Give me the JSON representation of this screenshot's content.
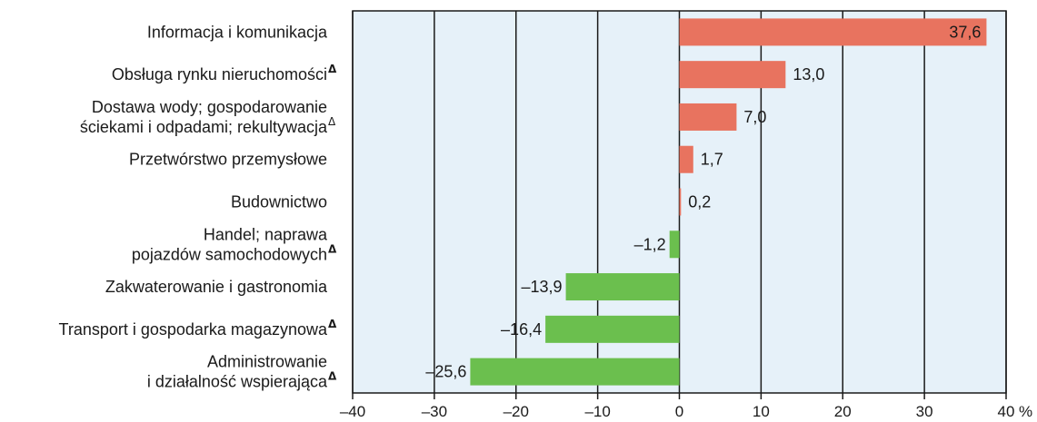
{
  "chart_data": {
    "type": "bar",
    "orientation": "horizontal",
    "categories": [
      {
        "lines": [
          "Informacja i komunikacja"
        ],
        "delta": "",
        "delta_bold": false
      },
      {
        "lines": [
          "Obsługa rynku nieruchomości"
        ],
        "delta": "Δ",
        "delta_bold": true
      },
      {
        "lines": [
          "Dostawa wody; gospodarowanie",
          "ściekami i odpadami; rekultywacja"
        ],
        "delta": "Δ",
        "delta_bold": false
      },
      {
        "lines": [
          "Przetwórstwo przemysłowe"
        ],
        "delta": "",
        "delta_bold": false
      },
      {
        "lines": [
          "Budownictwo"
        ],
        "delta": "",
        "delta_bold": false
      },
      {
        "lines": [
          "Handel; naprawa",
          "pojazdów samochodowych"
        ],
        "delta": "Δ",
        "delta_bold": true
      },
      {
        "lines": [
          "Zakwaterowanie i gastronomia"
        ],
        "delta": "",
        "delta_bold": false
      },
      {
        "lines": [
          "Transport i gospodarka magazynowa"
        ],
        "delta": "Δ",
        "delta_bold": true
      },
      {
        "lines": [
          "Administrowanie",
          "i działalność wspierająca"
        ],
        "delta": "Δ",
        "delta_bold": true
      }
    ],
    "values": [
      37.6,
      13.0,
      7.0,
      1.7,
      0.2,
      -1.2,
      -13.9,
      -16.4,
      -25.6
    ],
    "value_labels": [
      "37,6",
      "13,0",
      "7,0",
      "1,7",
      "0,2",
      "–1,2",
      "–13,9",
      "–16,4",
      "–25,6"
    ],
    "xlim": [
      -40,
      40
    ],
    "x_ticks": [
      -40,
      -30,
      -20,
      -10,
      0,
      10,
      20,
      30,
      40
    ],
    "x_tick_labels": [
      "–40",
      "–30",
      "–20",
      "–10",
      "0",
      "10",
      "20",
      "30",
      "40"
    ],
    "x_unit": "%",
    "grid": true,
    "colors": {
      "positive": "#e8735f",
      "negative": "#6bbf4e",
      "plot_background": "#e6f1f9",
      "grid": "#1a1a1a"
    }
  }
}
